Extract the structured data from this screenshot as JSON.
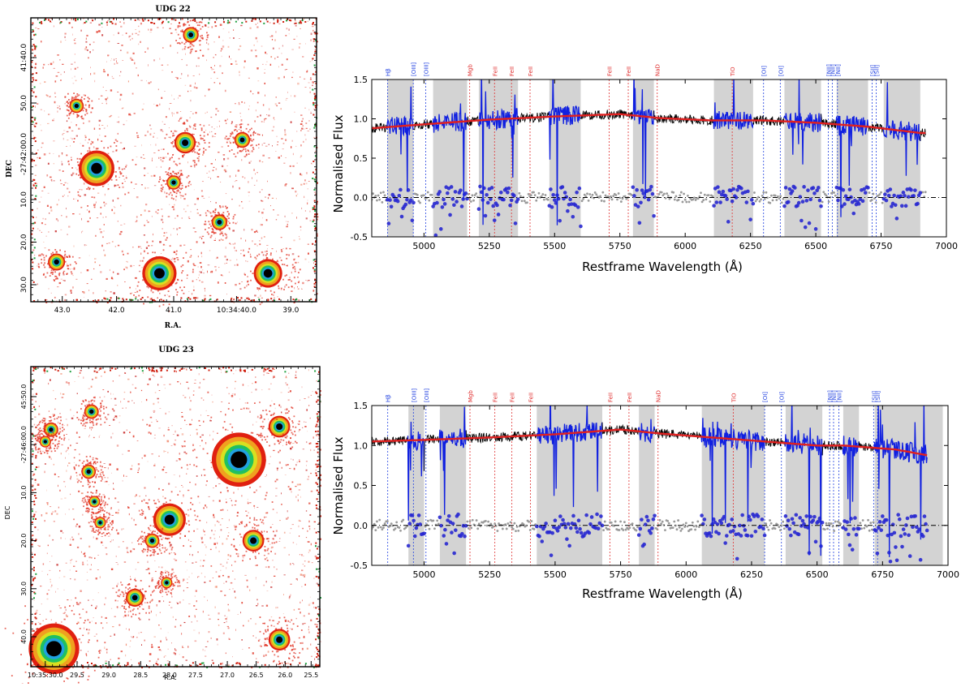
{
  "images": [
    {
      "title": "UDG 22",
      "xlabel": "R.A.",
      "ylabel": "DEC",
      "xticks": [
        "43.0",
        "42.0",
        "41.0",
        "10:34:40.0",
        "39.0"
      ],
      "yticks": [
        "41:40.0",
        "50.0",
        "-27:42:00.0",
        "10.0",
        "20.0",
        "30.0"
      ],
      "sources": [
        {
          "x": 0.56,
          "y": 0.06,
          "r": 0.022
        },
        {
          "x": 0.16,
          "y": 0.31,
          "r": 0.02
        },
        {
          "x": 0.54,
          "y": 0.44,
          "r": 0.03
        },
        {
          "x": 0.74,
          "y": 0.43,
          "r": 0.022
        },
        {
          "x": 0.23,
          "y": 0.53,
          "r": 0.05
        },
        {
          "x": 0.5,
          "y": 0.58,
          "r": 0.02
        },
        {
          "x": 0.66,
          "y": 0.72,
          "r": 0.022
        },
        {
          "x": 0.09,
          "y": 0.86,
          "r": 0.024
        },
        {
          "x": 0.45,
          "y": 0.9,
          "r": 0.048
        },
        {
          "x": 0.83,
          "y": 0.9,
          "r": 0.04
        }
      ]
    },
    {
      "title": "UDG 23",
      "xlabel": "R.A.",
      "ylabel": "DEC",
      "xticks": [
        "10:35:30.0",
        "29.5",
        "29.0",
        "28.5",
        "28.0",
        "27.5",
        "27.0",
        "26.5",
        "26.0",
        "25.5"
      ],
      "yticks": [
        "45:50.0",
        "-27:46:00.0",
        "10.0",
        "20.0",
        "30.0",
        "40.0"
      ],
      "sources": [
        {
          "x": 0.07,
          "y": 0.21,
          "r": 0.02
        },
        {
          "x": 0.05,
          "y": 0.25,
          "r": 0.016
        },
        {
          "x": 0.21,
          "y": 0.15,
          "r": 0.02
        },
        {
          "x": 0.86,
          "y": 0.2,
          "r": 0.03
        },
        {
          "x": 0.72,
          "y": 0.31,
          "r": 0.075
        },
        {
          "x": 0.2,
          "y": 0.35,
          "r": 0.02
        },
        {
          "x": 0.22,
          "y": 0.45,
          "r": 0.016
        },
        {
          "x": 0.24,
          "y": 0.52,
          "r": 0.016
        },
        {
          "x": 0.48,
          "y": 0.51,
          "r": 0.045
        },
        {
          "x": 0.42,
          "y": 0.58,
          "r": 0.02
        },
        {
          "x": 0.77,
          "y": 0.58,
          "r": 0.03
        },
        {
          "x": 0.47,
          "y": 0.72,
          "r": 0.016
        },
        {
          "x": 0.36,
          "y": 0.77,
          "r": 0.025
        },
        {
          "x": 0.86,
          "y": 0.91,
          "r": 0.03
        },
        {
          "x": 0.08,
          "y": 0.94,
          "r": 0.07
        }
      ]
    }
  ],
  "chart_data": [
    {
      "type": "line",
      "xlabel": "Restframe Wavelength (Å)",
      "ylabel": "Normalised Flux",
      "xlim": [
        4800,
        7000
      ],
      "ylim": [
        -0.5,
        1.5
      ],
      "xticks": [
        5000,
        5250,
        5500,
        5750,
        6000,
        6250,
        6500,
        6750,
        7000
      ],
      "yticks": [
        -0.5,
        0.0,
        0.5,
        1.0,
        1.5
      ],
      "masked_regions": [
        [
          4860,
          4960
        ],
        [
          5035,
          5165
        ],
        [
          5210,
          5360
        ],
        [
          5480,
          5600
        ],
        [
          5800,
          5880
        ],
        [
          6110,
          6260
        ],
        [
          6380,
          6520
        ],
        [
          6580,
          6700
        ],
        [
          6760,
          6900
        ]
      ],
      "emission_lines": [
        {
          "label": "Hβ",
          "x": 4861
        },
        {
          "label": "[OIII]",
          "x": 4959
        },
        {
          "label": "[OIII]",
          "x": 5007
        },
        {
          "label": "[OI]",
          "x": 6300
        },
        {
          "label": "[OI]",
          "x": 6364
        },
        {
          "label": "[NII]",
          "x": 6548
        },
        {
          "label": "[NII]",
          "x": 6563
        },
        {
          "label": "[NII]",
          "x": 6583
        },
        {
          "label": "[SII]",
          "x": 6716
        },
        {
          "label": "[SII]",
          "x": 6731
        }
      ],
      "absorption_lines": [
        {
          "label": "Mgb",
          "x": 5175
        },
        {
          "label": "FeII",
          "x": 5270
        },
        {
          "label": "FeII",
          "x": 5335
        },
        {
          "label": "FeII",
          "x": 5406
        },
        {
          "label": "FeII",
          "x": 5709
        },
        {
          "label": "FeII",
          "x": 5782
        },
        {
          "label": "NaD",
          "x": 5893
        },
        {
          "label": "TiO",
          "x": 6180
        }
      ],
      "model_x": [
        4800,
        5000,
        5250,
        5500,
        5750,
        5900,
        6100,
        6300,
        6500,
        6700,
        6900
      ],
      "model_y": [
        0.88,
        0.93,
        0.99,
        1.03,
        1.06,
        1.01,
        0.98,
        0.98,
        0.95,
        0.9,
        0.82
      ]
    },
    {
      "type": "line",
      "xlabel": "Restframe Wavelength (Å)",
      "ylabel": "Normalised Flux",
      "xlim": [
        4800,
        7000
      ],
      "ylim": [
        -0.5,
        1.5
      ],
      "xticks": [
        5000,
        5250,
        5500,
        5750,
        6000,
        6250,
        6500,
        6750,
        7000
      ],
      "yticks": [
        -0.5,
        0.0,
        0.5,
        1.0,
        1.5
      ],
      "masked_regions": [
        [
          4940,
          5000
        ],
        [
          5060,
          5160
        ],
        [
          5430,
          5680
        ],
        [
          5820,
          5880
        ],
        [
          6060,
          6300
        ],
        [
          6380,
          6520
        ],
        [
          6600,
          6660
        ],
        [
          6720,
          6980
        ]
      ],
      "emission_lines": [
        {
          "label": "Hβ",
          "x": 4861
        },
        {
          "label": "[OIII]",
          "x": 4959
        },
        {
          "label": "[OIII]",
          "x": 5007
        },
        {
          "label": "[OI]",
          "x": 6300
        },
        {
          "label": "[OI]",
          "x": 6364
        },
        {
          "label": "[NII]",
          "x": 6548
        },
        {
          "label": "[NII]",
          "x": 6563
        },
        {
          "label": "[NII]",
          "x": 6583
        },
        {
          "label": "[SII]",
          "x": 6716
        },
        {
          "label": "[SII]",
          "x": 6731
        }
      ],
      "absorption_lines": [
        {
          "label": "Mgb",
          "x": 5175
        },
        {
          "label": "FeII",
          "x": 5270
        },
        {
          "label": "FeII",
          "x": 5335
        },
        {
          "label": "FeII",
          "x": 5406
        },
        {
          "label": "FeII",
          "x": 5709
        },
        {
          "label": "FeII",
          "x": 5782
        },
        {
          "label": "NaD",
          "x": 5893
        },
        {
          "label": "TiO",
          "x": 6180
        }
      ],
      "model_x": [
        4800,
        5000,
        5250,
        5500,
        5750,
        5900,
        6100,
        6300,
        6500,
        6600,
        6800,
        6950,
        7000
      ],
      "model_y": [
        1.05,
        1.07,
        1.1,
        1.14,
        1.2,
        1.15,
        1.1,
        1.05,
        1.0,
        1.0,
        0.95,
        0.86,
        0.88
      ]
    }
  ]
}
